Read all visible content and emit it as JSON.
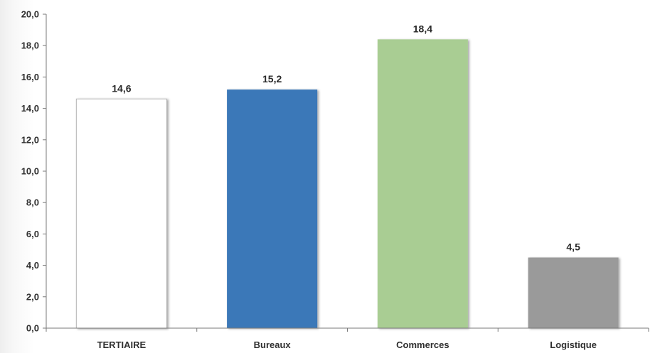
{
  "chart_data": {
    "type": "bar",
    "categories": [
      "TERTIAIRE",
      "Bureaux",
      "Commerces",
      "Logistique"
    ],
    "values": [
      14.6,
      15.2,
      18.4,
      4.5
    ],
    "value_labels": [
      "14,6",
      "15,2",
      "18,4",
      "4,5"
    ],
    "bar_colors": [
      "#ffffff",
      "#3b78b8",
      "#a9cd93",
      "#9a9a9a"
    ],
    "ylim": [
      0,
      20
    ],
    "yticks": [
      0,
      2,
      4,
      6,
      8,
      10,
      12,
      14,
      16,
      18,
      20
    ],
    "ytick_labels": [
      "0,0",
      "2,0",
      "4,0",
      "6,0",
      "8,0",
      "10,0",
      "12,0",
      "14,0",
      "16,0",
      "18,0",
      "20,0"
    ],
    "grid": false,
    "title": "",
    "xlabel": "",
    "ylabel": ""
  }
}
